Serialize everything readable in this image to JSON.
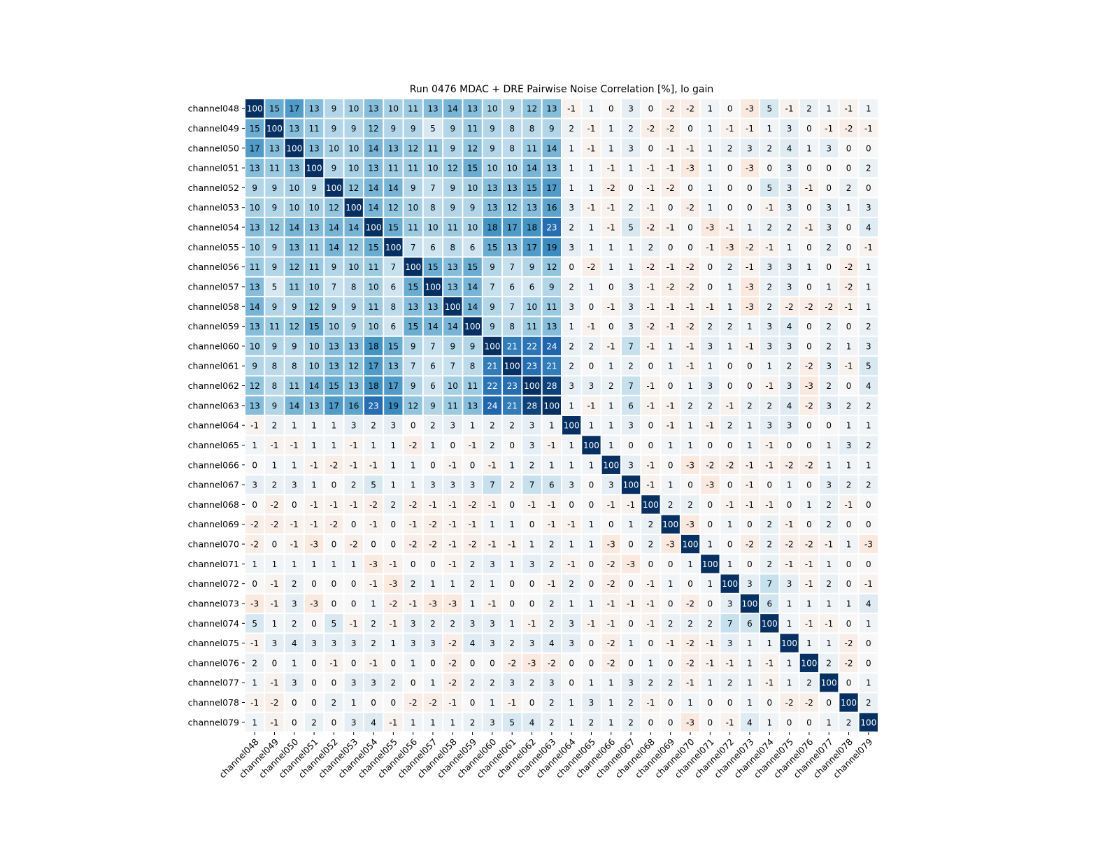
{
  "chart_data": {
    "type": "heatmap",
    "title": "Run 0476 MDAC + DRE Pairwise Noise Correlation [%], lo gain",
    "colormap": "RdBu",
    "zlim": [
      -30,
      30
    ],
    "categories": [
      "channel048",
      "channel049",
      "channel050",
      "channel051",
      "channel052",
      "channel053",
      "channel054",
      "channel055",
      "channel056",
      "channel057",
      "channel058",
      "channel059",
      "channel060",
      "channel061",
      "channel062",
      "channel063",
      "channel064",
      "channel065",
      "channel066",
      "channel067",
      "channel068",
      "channel069",
      "channel070",
      "channel071",
      "channel072",
      "channel073",
      "channel074",
      "channel075",
      "channel076",
      "channel077",
      "channel078",
      "channel079"
    ],
    "values": [
      [
        100,
        15,
        17,
        13,
        9,
        10,
        13,
        10,
        11,
        13,
        14,
        13,
        10,
        9,
        12,
        13,
        -1,
        1,
        0,
        3,
        0,
        -2,
        -2,
        1,
        0,
        -3,
        5,
        -1,
        2,
        1,
        -1,
        1
      ],
      [
        15,
        100,
        13,
        11,
        9,
        9,
        12,
        9,
        9,
        5,
        9,
        11,
        9,
        8,
        8,
        9,
        2,
        -1,
        1,
        2,
        -2,
        -2,
        0,
        1,
        -1,
        -1,
        1,
        3,
        0,
        -1,
        -2,
        -1
      ],
      [
        17,
        13,
        100,
        13,
        10,
        10,
        14,
        13,
        12,
        11,
        9,
        12,
        9,
        8,
        11,
        14,
        1,
        -1,
        1,
        3,
        0,
        -1,
        -1,
        1,
        2,
        3,
        2,
        4,
        1,
        3,
        0,
        0
      ],
      [
        13,
        11,
        13,
        100,
        9,
        10,
        13,
        11,
        11,
        10,
        12,
        15,
        10,
        10,
        14,
        13,
        1,
        1,
        -1,
        1,
        -1,
        -1,
        -3,
        1,
        0,
        -3,
        0,
        3,
        0,
        0,
        0,
        2
      ],
      [
        9,
        9,
        10,
        9,
        100,
        12,
        14,
        14,
        9,
        7,
        9,
        10,
        13,
        13,
        15,
        17,
        1,
        1,
        -2,
        0,
        -1,
        -2,
        0,
        1,
        0,
        0,
        5,
        3,
        -1,
        0,
        2,
        0
      ],
      [
        10,
        9,
        10,
        10,
        12,
        100,
        14,
        12,
        10,
        8,
        9,
        9,
        13,
        12,
        13,
        16,
        3,
        -1,
        -1,
        2,
        -1,
        0,
        -2,
        1,
        0,
        0,
        -1,
        3,
        0,
        3,
        1,
        3
      ],
      [
        13,
        12,
        14,
        13,
        14,
        14,
        100,
        15,
        11,
        10,
        11,
        10,
        18,
        17,
        18,
        23,
        2,
        1,
        -1,
        5,
        -2,
        -1,
        0,
        -3,
        -1,
        1,
        2,
        2,
        -1,
        3,
        0,
        4
      ],
      [
        10,
        9,
        13,
        11,
        14,
        12,
        15,
        100,
        7,
        6,
        8,
        6,
        15,
        13,
        17,
        19,
        3,
        1,
        1,
        1,
        2,
        0,
        0,
        -1,
        -3,
        -2,
        -1,
        1,
        0,
        2,
        0,
        -1
      ],
      [
        11,
        9,
        12,
        11,
        9,
        10,
        11,
        7,
        100,
        15,
        13,
        15,
        9,
        7,
        9,
        12,
        0,
        -2,
        1,
        1,
        -2,
        -1,
        -2,
        0,
        2,
        -1,
        3,
        3,
        1,
        0,
        -2,
        1
      ],
      [
        13,
        5,
        11,
        10,
        7,
        8,
        10,
        6,
        15,
        100,
        13,
        14,
        7,
        6,
        6,
        9,
        2,
        1,
        0,
        3,
        -1,
        -2,
        -2,
        0,
        1,
        -3,
        2,
        3,
        0,
        1,
        -2,
        1
      ],
      [
        14,
        9,
        9,
        12,
        9,
        9,
        11,
        8,
        13,
        13,
        100,
        14,
        9,
        7,
        10,
        11,
        3,
        0,
        -1,
        3,
        -1,
        -1,
        -1,
        -1,
        1,
        -3,
        2,
        -2,
        -2,
        -2,
        -1,
        1
      ],
      [
        13,
        11,
        12,
        15,
        10,
        9,
        10,
        6,
        15,
        14,
        14,
        100,
        9,
        8,
        11,
        13,
        1,
        -1,
        0,
        3,
        -2,
        -1,
        -2,
        2,
        2,
        1,
        3,
        4,
        0,
        2,
        0,
        2
      ],
      [
        10,
        9,
        9,
        10,
        13,
        13,
        18,
        15,
        9,
        7,
        9,
        9,
        100,
        21,
        22,
        24,
        2,
        2,
        -1,
        7,
        -1,
        1,
        -1,
        3,
        1,
        -1,
        3,
        3,
        0,
        2,
        1,
        3
      ],
      [
        9,
        8,
        8,
        10,
        13,
        12,
        17,
        13,
        7,
        6,
        7,
        8,
        21,
        100,
        23,
        21,
        2,
        0,
        1,
        2,
        0,
        1,
        -1,
        1,
        0,
        0,
        1,
        2,
        -2,
        3,
        -1,
        5
      ],
      [
        12,
        8,
        11,
        14,
        15,
        13,
        18,
        17,
        9,
        6,
        10,
        11,
        22,
        23,
        100,
        28,
        3,
        3,
        2,
        7,
        -1,
        0,
        1,
        3,
        0,
        0,
        -1,
        3,
        -3,
        2,
        0,
        4
      ],
      [
        13,
        9,
        14,
        13,
        17,
        16,
        23,
        19,
        12,
        9,
        11,
        13,
        24,
        21,
        28,
        100,
        1,
        -1,
        1,
        6,
        -1,
        -1,
        2,
        2,
        -1,
        2,
        2,
        4,
        -2,
        3,
        2,
        2
      ],
      [
        -1,
        2,
        1,
        1,
        1,
        3,
        2,
        3,
        0,
        2,
        3,
        1,
        2,
        2,
        3,
        1,
        100,
        1,
        1,
        3,
        0,
        -1,
        1,
        -1,
        2,
        1,
        3,
        3,
        0,
        0,
        1,
        1
      ],
      [
        1,
        -1,
        -1,
        1,
        1,
        -1,
        1,
        1,
        -2,
        1,
        0,
        -1,
        2,
        0,
        3,
        -1,
        1,
        100,
        1,
        0,
        0,
        1,
        1,
        0,
        0,
        1,
        -1,
        0,
        0,
        1,
        3,
        2
      ],
      [
        0,
        1,
        1,
        -1,
        -2,
        -1,
        -1,
        1,
        1,
        0,
        -1,
        0,
        -1,
        1,
        2,
        1,
        1,
        1,
        100,
        3,
        -1,
        0,
        -3,
        -2,
        -2,
        -1,
        -1,
        -2,
        -2,
        1,
        1,
        1
      ],
      [
        3,
        2,
        3,
        1,
        0,
        2,
        5,
        1,
        1,
        3,
        3,
        3,
        7,
        2,
        7,
        6,
        3,
        0,
        3,
        100,
        -1,
        1,
        0,
        -3,
        0,
        -1,
        0,
        1,
        0,
        3,
        2,
        2
      ],
      [
        0,
        -2,
        0,
        -1,
        -1,
        -1,
        -2,
        2,
        -2,
        -1,
        -1,
        -2,
        -1,
        0,
        -1,
        -1,
        0,
        0,
        -1,
        -1,
        100,
        2,
        2,
        0,
        -1,
        -1,
        -1,
        0,
        1,
        2,
        -1,
        0
      ],
      [
        -2,
        -2,
        -1,
        -1,
        -2,
        0,
        -1,
        0,
        -1,
        -2,
        -1,
        -1,
        1,
        1,
        0,
        -1,
        -1,
        1,
        0,
        1,
        2,
        100,
        -3,
        0,
        1,
        0,
        2,
        -1,
        0,
        2,
        0,
        0
      ],
      [
        -2,
        0,
        -1,
        -3,
        0,
        -2,
        0,
        0,
        -2,
        -2,
        -1,
        -2,
        -1,
        -1,
        1,
        2,
        1,
        1,
        -3,
        0,
        2,
        -3,
        100,
        1,
        0,
        -2,
        2,
        -2,
        -2,
        -1,
        1,
        -3
      ],
      [
        1,
        1,
        1,
        1,
        1,
        1,
        -3,
        -1,
        0,
        0,
        -1,
        2,
        3,
        1,
        3,
        2,
        -1,
        0,
        -2,
        -3,
        0,
        0,
        1,
        100,
        1,
        0,
        2,
        -1,
        -1,
        1,
        0,
        0
      ],
      [
        0,
        -1,
        2,
        0,
        0,
        0,
        -1,
        -3,
        2,
        1,
        1,
        2,
        1,
        0,
        0,
        -1,
        2,
        0,
        -2,
        0,
        -1,
        1,
        0,
        1,
        100,
        3,
        7,
        3,
        -1,
        2,
        0,
        -1
      ],
      [
        -3,
        -1,
        3,
        -3,
        0,
        0,
        1,
        -2,
        -1,
        -3,
        -3,
        1,
        -1,
        0,
        0,
        2,
        1,
        1,
        -1,
        -1,
        -1,
        0,
        -2,
        0,
        3,
        100,
        6,
        1,
        1,
        1,
        1,
        4
      ],
      [
        5,
        1,
        2,
        0,
        5,
        -1,
        2,
        -1,
        3,
        2,
        2,
        3,
        3,
        1,
        -1,
        2,
        3,
        -1,
        -1,
        0,
        -1,
        2,
        2,
        2,
        7,
        6,
        100,
        1,
        -1,
        -1,
        0,
        1
      ],
      [
        -1,
        3,
        4,
        3,
        3,
        3,
        2,
        1,
        3,
        3,
        -2,
        4,
        3,
        2,
        3,
        4,
        3,
        0,
        -2,
        1,
        0,
        -1,
        -2,
        -1,
        3,
        1,
        1,
        100,
        1,
        1,
        -2,
        0
      ],
      [
        2,
        0,
        1,
        0,
        -1,
        0,
        -1,
        0,
        1,
        0,
        -2,
        0,
        0,
        -2,
        -3,
        -2,
        0,
        0,
        -2,
        0,
        1,
        0,
        -2,
        -1,
        -1,
        1,
        -1,
        1,
        100,
        2,
        -2,
        0
      ],
      [
        1,
        -1,
        3,
        0,
        0,
        3,
        3,
        2,
        0,
        1,
        -2,
        2,
        2,
        3,
        2,
        3,
        0,
        1,
        1,
        3,
        2,
        2,
        -1,
        1,
        2,
        1,
        -1,
        1,
        2,
        100,
        0,
        1
      ],
      [
        -1,
        -2,
        0,
        0,
        2,
        1,
        0,
        0,
        -2,
        -2,
        -1,
        0,
        1,
        -1,
        0,
        2,
        1,
        3,
        1,
        2,
        -1,
        0,
        1,
        0,
        0,
        1,
        0,
        -2,
        -2,
        0,
        100,
        2
      ],
      [
        1,
        -1,
        0,
        2,
        0,
        3,
        4,
        -1,
        1,
        1,
        1,
        2,
        3,
        5,
        4,
        2,
        1,
        2,
        1,
        2,
        0,
        0,
        -3,
        0,
        -1,
        4,
        1,
        0,
        0,
        1,
        2,
        100
      ]
    ]
  }
}
